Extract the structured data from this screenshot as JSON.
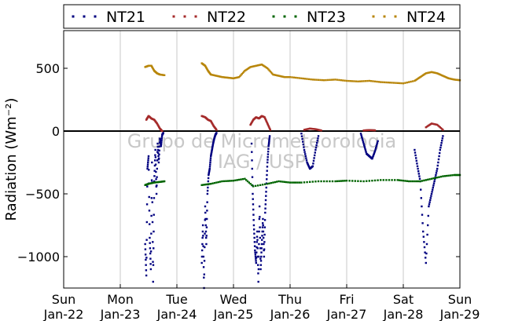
{
  "chart_data": {
    "type": "scatter",
    "ylabel": "Radiation (Wm⁻²)",
    "ylim": [
      -1250,
      800
    ],
    "xlim": [
      0,
      7
    ],
    "yticks": [
      -1000,
      -500,
      0,
      500
    ],
    "ytick_labels": [
      "−1000",
      "−500",
      "0",
      "500"
    ],
    "xticks": [
      0,
      1,
      2,
      3,
      4,
      5,
      6,
      7
    ],
    "xtick_labels": [
      [
        "Sun",
        "Jan-22"
      ],
      [
        "Mon",
        "Jan-23"
      ],
      [
        "Tue",
        "Jan-24"
      ],
      [
        "Wed",
        "Jan-25"
      ],
      [
        "Thu",
        "Jan-26"
      ],
      [
        "Fri",
        "Jan-27"
      ],
      [
        "Sat",
        "Jan-28"
      ],
      [
        "Sun",
        "Jan-29"
      ]
    ],
    "grid": "vertical",
    "legend_position": "top",
    "zero_line": true,
    "watermark": [
      "Grupo de Micrometeorologia",
      "IAG / USP"
    ],
    "series": [
      {
        "name": "NT21",
        "color": "#000080",
        "segments": [
          [
            [
              1.44,
              -900
            ],
            [
              1.46,
              -1150
            ],
            [
              1.48,
              -300
            ],
            [
              1.5,
              -200
            ],
            [
              1.52,
              -850
            ],
            [
              1.54,
              -1100
            ],
            [
              1.56,
              -250
            ],
            [
              1.58,
              -1200
            ],
            [
              1.6,
              -400
            ],
            [
              1.62,
              -150
            ],
            [
              1.64,
              -500
            ],
            [
              1.66,
              -100
            ],
            [
              1.68,
              -250
            ],
            [
              1.7,
              -60
            ],
            [
              1.72,
              -120
            ],
            [
              1.74,
              -30
            ],
            [
              1.76,
              -15
            ]
          ],
          [
            [
              2.44,
              -1050
            ],
            [
              2.46,
              -750
            ],
            [
              2.48,
              -1250
            ],
            [
              2.5,
              -600
            ],
            [
              2.52,
              -900
            ],
            [
              2.54,
              -500
            ],
            [
              2.56,
              -350
            ],
            [
              2.58,
              -300
            ],
            [
              2.6,
              -200
            ],
            [
              2.62,
              -150
            ],
            [
              2.64,
              -100
            ],
            [
              2.66,
              -60
            ],
            [
              2.68,
              -30
            ],
            [
              2.7,
              -15
            ]
          ],
          [
            [
              3.32,
              -100
            ],
            [
              3.34,
              -500
            ],
            [
              3.36,
              -750
            ],
            [
              3.38,
              -950
            ],
            [
              3.4,
              -1050
            ],
            [
              3.42,
              -800
            ],
            [
              3.44,
              -1200
            ],
            [
              3.46,
              -600
            ],
            [
              3.48,
              -1100
            ],
            [
              3.5,
              -900
            ],
            [
              3.52,
              -700
            ],
            [
              3.54,
              -1000
            ],
            [
              3.56,
              -650
            ],
            [
              3.58,
              -450
            ],
            [
              3.6,
              -250
            ],
            [
              3.62,
              -120
            ],
            [
              3.64,
              -40
            ]
          ],
          [
            [
              4.2,
              -20
            ],
            [
              4.25,
              -150
            ],
            [
              4.3,
              -250
            ],
            [
              4.35,
              -300
            ],
            [
              4.4,
              -280
            ],
            [
              4.45,
              -150
            ],
            [
              4.5,
              -40
            ]
          ],
          [
            [
              5.25,
              -20
            ],
            [
              5.3,
              -100
            ],
            [
              5.35,
              -180
            ],
            [
              5.4,
              -200
            ],
            [
              5.45,
              -220
            ],
            [
              5.5,
              -160
            ],
            [
              5.55,
              -80
            ]
          ],
          [
            [
              6.2,
              -150
            ],
            [
              6.25,
              -280
            ],
            [
              6.3,
              -400
            ],
            [
              6.35,
              -800
            ],
            [
              6.4,
              -1050
            ],
            [
              6.45,
              -600
            ],
            [
              6.5,
              -500
            ],
            [
              6.55,
              -400
            ],
            [
              6.6,
              -300
            ],
            [
              6.65,
              -150
            ],
            [
              6.7,
              -40
            ]
          ]
        ]
      },
      {
        "name": "NT22",
        "color": "#a52a2a",
        "segments": [
          [
            [
              1.46,
              90
            ],
            [
              1.5,
              120
            ],
            [
              1.55,
              100
            ],
            [
              1.6,
              90
            ],
            [
              1.65,
              60
            ],
            [
              1.7,
              20
            ],
            [
              1.74,
              0
            ]
          ],
          [
            [
              2.44,
              120
            ],
            [
              2.5,
              110
            ],
            [
              2.55,
              90
            ],
            [
              2.6,
              80
            ],
            [
              2.65,
              40
            ],
            [
              2.7,
              10
            ]
          ],
          [
            [
              3.3,
              50
            ],
            [
              3.35,
              90
            ],
            [
              3.4,
              110
            ],
            [
              3.45,
              100
            ],
            [
              3.5,
              120
            ],
            [
              3.55,
              110
            ],
            [
              3.6,
              60
            ],
            [
              3.65,
              10
            ]
          ],
          [
            [
              4.25,
              10
            ],
            [
              4.35,
              20
            ],
            [
              4.45,
              15
            ],
            [
              4.55,
              5
            ]
          ],
          [
            [
              5.3,
              5
            ],
            [
              5.4,
              8
            ],
            [
              5.5,
              6
            ]
          ],
          [
            [
              6.4,
              30
            ],
            [
              6.5,
              60
            ],
            [
              6.6,
              50
            ],
            [
              6.7,
              10
            ]
          ]
        ]
      },
      {
        "name": "NT23",
        "color": "#006400",
        "segments": [
          [
            [
              1.44,
              -430
            ],
            [
              1.5,
              -420
            ],
            [
              1.6,
              -410
            ],
            [
              1.7,
              -405
            ],
            [
              1.78,
              -400
            ]
          ],
          [
            [
              2.44,
              -430
            ],
            [
              2.6,
              -420
            ],
            [
              2.8,
              -400
            ],
            [
              3.0,
              -395
            ],
            [
              3.2,
              -380
            ],
            [
              3.35,
              -440
            ],
            [
              3.6,
              -420
            ],
            [
              3.8,
              -400
            ],
            [
              4.0,
              -410
            ],
            [
              4.2,
              -410
            ],
            [
              4.5,
              -400
            ],
            [
              4.8,
              -400
            ],
            [
              5.0,
              -395
            ],
            [
              5.3,
              -400
            ],
            [
              5.6,
              -390
            ],
            [
              5.9,
              -390
            ],
            [
              6.1,
              -400
            ],
            [
              6.3,
              -400
            ],
            [
              6.5,
              -380
            ],
            [
              6.7,
              -360
            ],
            [
              6.9,
              -350
            ],
            [
              7.0,
              -350
            ]
          ]
        ]
      },
      {
        "name": "NT24",
        "color": "#b8860b",
        "segments": [
          [
            [
              1.44,
              510
            ],
            [
              1.5,
              520
            ],
            [
              1.55,
              520
            ],
            [
              1.6,
              480
            ],
            [
              1.65,
              460
            ],
            [
              1.7,
              450
            ],
            [
              1.78,
              445
            ]
          ],
          [
            [
              2.44,
              540
            ],
            [
              2.5,
              520
            ],
            [
              2.55,
              480
            ],
            [
              2.6,
              450
            ],
            [
              2.7,
              440
            ],
            [
              2.8,
              430
            ],
            [
              2.9,
              425
            ],
            [
              3.0,
              420
            ],
            [
              3.1,
              430
            ],
            [
              3.2,
              480
            ],
            [
              3.3,
              510
            ],
            [
              3.4,
              520
            ],
            [
              3.5,
              530
            ],
            [
              3.6,
              500
            ],
            [
              3.7,
              450
            ],
            [
              3.8,
              440
            ],
            [
              3.9,
              430
            ],
            [
              4.0,
              430
            ],
            [
              4.2,
              420
            ],
            [
              4.4,
              410
            ],
            [
              4.6,
              405
            ],
            [
              4.8,
              410
            ],
            [
              5.0,
              400
            ],
            [
              5.2,
              395
            ],
            [
              5.4,
              400
            ],
            [
              5.6,
              390
            ],
            [
              5.8,
              385
            ],
            [
              6.0,
              380
            ],
            [
              6.2,
              400
            ],
            [
              6.3,
              430
            ],
            [
              6.4,
              460
            ],
            [
              6.5,
              470
            ],
            [
              6.6,
              460
            ],
            [
              6.7,
              440
            ],
            [
              6.8,
              420
            ],
            [
              6.9,
              410
            ],
            [
              7.0,
              405
            ]
          ]
        ]
      }
    ]
  }
}
